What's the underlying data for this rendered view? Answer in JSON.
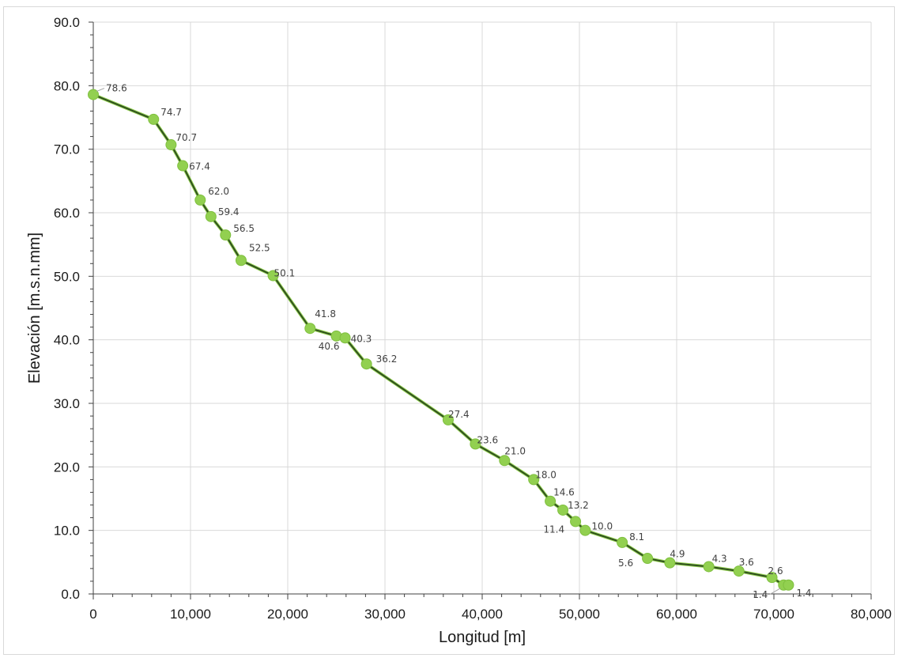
{
  "chart_data": {
    "type": "line",
    "title": "",
    "xlabel": "Longitud [m]",
    "ylabel": "Elevación [m.s.n.mm]",
    "xlim": [
      0,
      80000
    ],
    "ylim": [
      0,
      90
    ],
    "x_ticks": [
      0,
      10000,
      20000,
      30000,
      40000,
      50000,
      60000,
      70000,
      80000
    ],
    "x_tick_labels": [
      "0",
      "10,000",
      "20,000",
      "30,000",
      "40,000",
      "50,000",
      "60,000",
      "70,000",
      "80,000"
    ],
    "y_ticks": [
      0,
      10,
      20,
      30,
      40,
      50,
      60,
      70,
      80,
      90
    ],
    "y_tick_labels": [
      "0.0",
      "10.0",
      "20.0",
      "30.0",
      "40.0",
      "50.0",
      "60.0",
      "70.0",
      "80.0",
      "90.0"
    ],
    "grid": true,
    "legend": "none",
    "line_color": "#2f4f1f",
    "marker_color": "#92d050",
    "series": [
      {
        "points": [
          {
            "x": 0,
            "y": 78.6,
            "label": "78.6"
          },
          {
            "x": 6200,
            "y": 74.7,
            "label": "74.7"
          },
          {
            "x": 8000,
            "y": 70.7,
            "label": "70.7"
          },
          {
            "x": 9200,
            "y": 67.4,
            "label": "67.4"
          },
          {
            "x": 11000,
            "y": 62.0,
            "label": "62.0"
          },
          {
            "x": 12100,
            "y": 59.4,
            "label": "59.4"
          },
          {
            "x": 13600,
            "y": 56.5,
            "label": "56.5"
          },
          {
            "x": 15200,
            "y": 52.5,
            "label": "52.5"
          },
          {
            "x": 18500,
            "y": 50.1,
            "label": "50.1"
          },
          {
            "x": 22300,
            "y": 41.8,
            "label": "41.8"
          },
          {
            "x": 25000,
            "y": 40.6,
            "label": "40.6"
          },
          {
            "x": 25900,
            "y": 40.3,
            "label": "40.3"
          },
          {
            "x": 28100,
            "y": 36.2,
            "label": "36.2"
          },
          {
            "x": 36500,
            "y": 27.4,
            "label": "27.4"
          },
          {
            "x": 39300,
            "y": 23.6,
            "label": "23.6"
          },
          {
            "x": 42300,
            "y": 21.0,
            "label": "21.0"
          },
          {
            "x": 45300,
            "y": 18.0,
            "label": "18.0"
          },
          {
            "x": 47000,
            "y": 14.6,
            "label": "14.6"
          },
          {
            "x": 48300,
            "y": 13.2,
            "label": "13.2"
          },
          {
            "x": 49600,
            "y": 11.4,
            "label": "11.4"
          },
          {
            "x": 50600,
            "y": 10.0,
            "label": "10.0"
          },
          {
            "x": 54400,
            "y": 8.1,
            "label": "8.1"
          },
          {
            "x": 57000,
            "y": 5.6,
            "label": "5.6"
          },
          {
            "x": 59300,
            "y": 4.9,
            "label": "4.9"
          },
          {
            "x": 63300,
            "y": 4.3,
            "label": "4.3"
          },
          {
            "x": 66400,
            "y": 3.6,
            "label": "3.6"
          },
          {
            "x": 69800,
            "y": 2.6,
            "label": "2.6"
          },
          {
            "x": 71000,
            "y": 1.4,
            "label": "1.4"
          },
          {
            "x": 71500,
            "y": 1.4,
            "label": "1.4"
          }
        ]
      }
    ]
  }
}
